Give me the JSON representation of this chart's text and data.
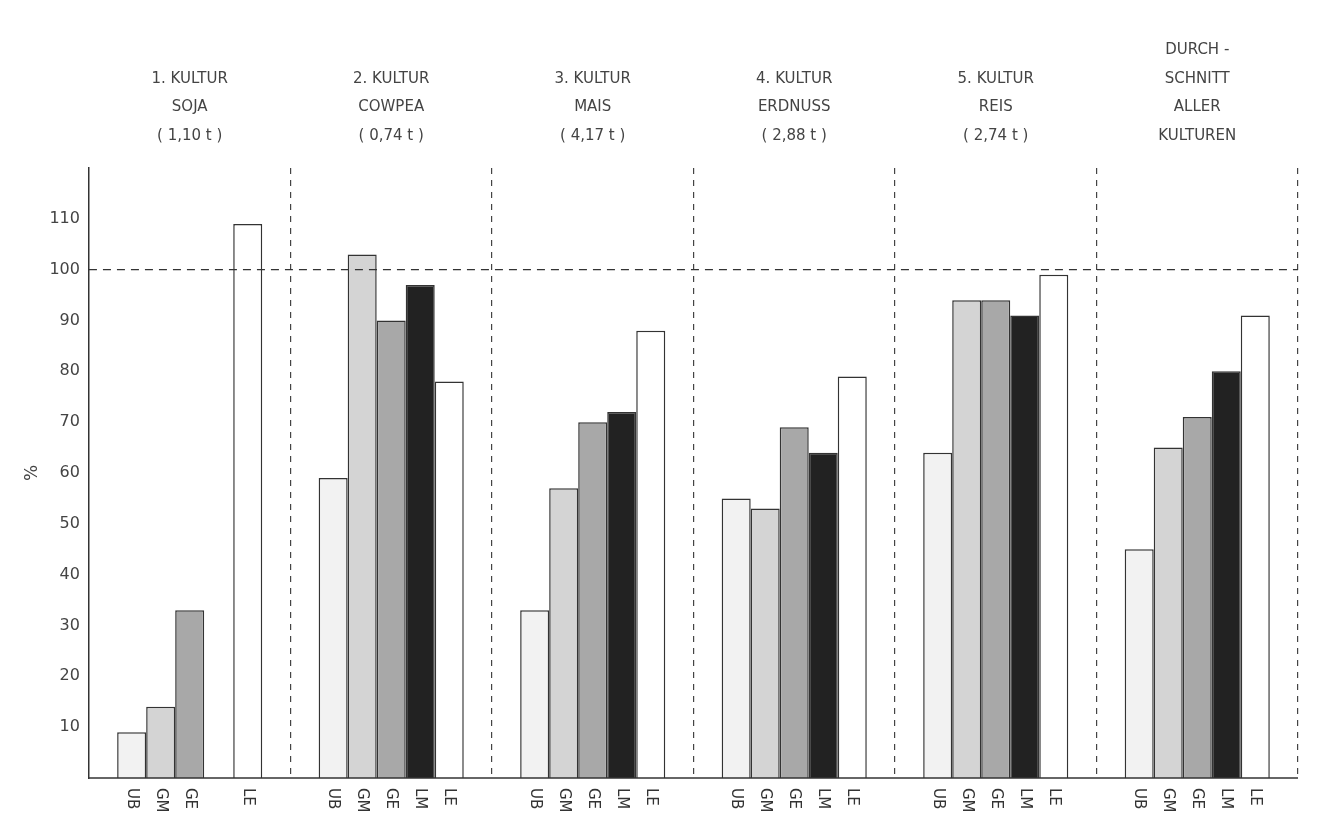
{
  "chart_data": {
    "type": "bar",
    "ylabel": "%",
    "categories": [
      "1. KULTUR\nSOJA\n( 1,10 t )",
      "2. KULTUR\nCOWPEA\n( 0,74 t )",
      "3. KULTUR\nMAIS\n( 4,17 t )",
      "4. KULTUR\nERDNUSS\n( 2,88 t )",
      "5. KULTUR\nREIS\n( 2,74 t )",
      "DURCH -\nSCHNITT\nALLER\nKULTUREN"
    ],
    "series": [
      {
        "name": "UB",
        "color": "#f2f2f2",
        "values": [
          9,
          59,
          33,
          55,
          64,
          45
        ]
      },
      {
        "name": "GM",
        "color": "#d4d4d4",
        "values": [
          14,
          103,
          57,
          53,
          94,
          65
        ]
      },
      {
        "name": "GE",
        "color": "#a8a8a8",
        "values": [
          33,
          90,
          70,
          69,
          94,
          71
        ]
      },
      {
        "name": "LM",
        "color": "#222222",
        "values": [
          null,
          97,
          72,
          64,
          91,
          80
        ]
      },
      {
        "name": "LE",
        "color": "#ffffff",
        "values": [
          109,
          78,
          88,
          79,
          99,
          91
        ]
      }
    ],
    "ylim": [
      0,
      120
    ],
    "yticks": [
      10,
      20,
      30,
      40,
      50,
      60,
      70,
      80,
      90,
      100,
      110
    ],
    "ref_lines": [
      {
        "axis": "y",
        "value": 100,
        "line_style": "dashed"
      }
    ],
    "grid": "x",
    "legend": false
  }
}
